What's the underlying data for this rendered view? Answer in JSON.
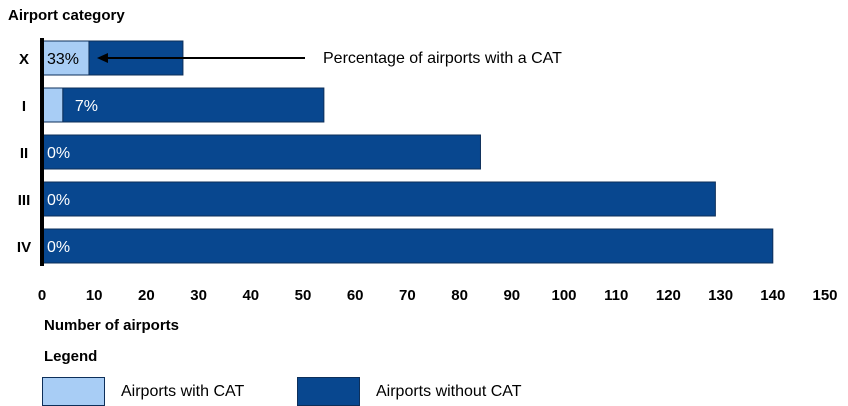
{
  "chart_data": {
    "type": "bar",
    "orientation": "horizontal",
    "stacked": true,
    "ylabel": "Airport category",
    "xlabel": "Number of airports",
    "categories": [
      "X",
      "I",
      "II",
      "III",
      "IV"
    ],
    "series": [
      {
        "name": "Airports with CAT",
        "values": [
          9,
          4,
          0,
          0,
          0
        ]
      },
      {
        "name": "Airports without CAT",
        "values": [
          18,
          50,
          84,
          129,
          140
        ]
      }
    ],
    "data_labels": [
      "33%",
      "7%",
      "0%",
      "0%",
      "0%"
    ],
    "xlim": [
      0,
      150
    ],
    "xticks": [
      0,
      10,
      20,
      30,
      40,
      50,
      60,
      70,
      80,
      90,
      100,
      110,
      120,
      130,
      140,
      150
    ],
    "grid": false,
    "annotation": {
      "text": "Percentage of airports with a CAT",
      "category": "X"
    },
    "legend": {
      "title": "Legend",
      "placement": "bottom-left"
    },
    "colors": {
      "with_cat": "#a8cdf5",
      "without_cat": "#08478f",
      "outline": "#0d2f5a"
    }
  }
}
